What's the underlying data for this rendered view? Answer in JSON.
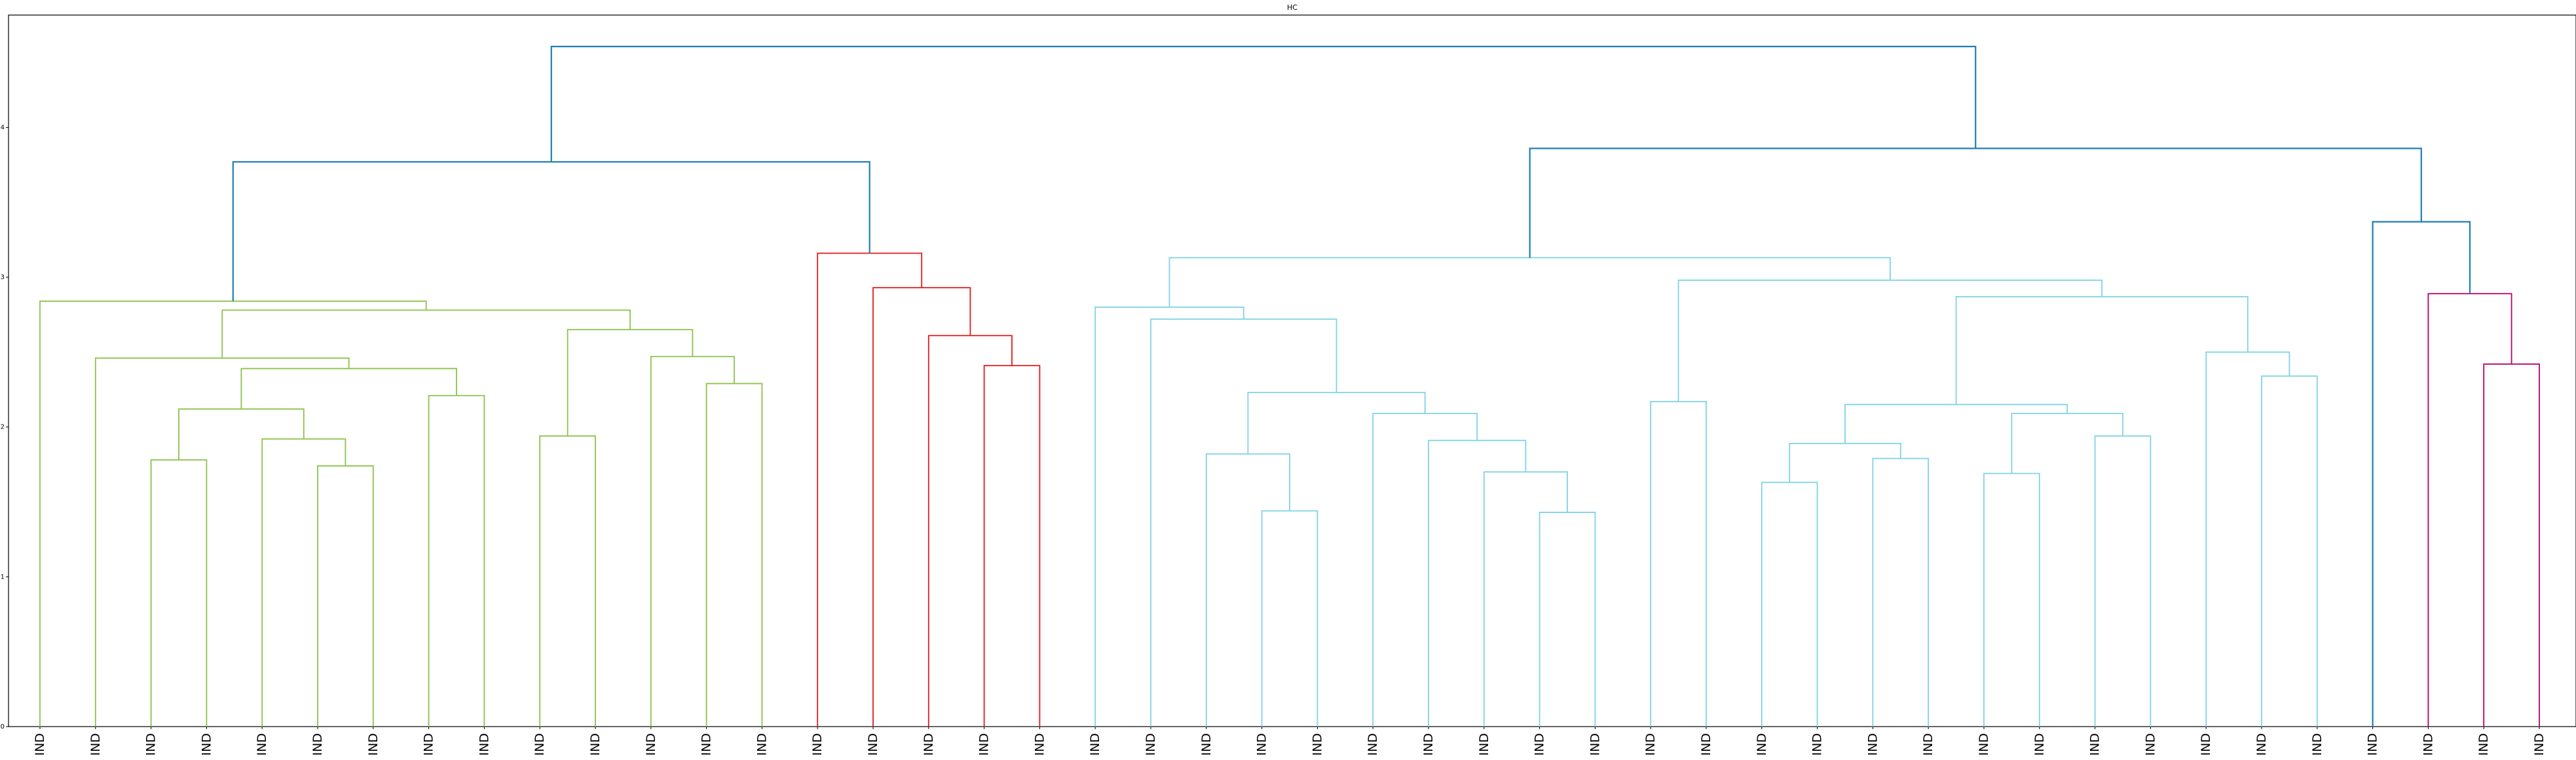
{
  "chart_data": {
    "type": "dendrogram",
    "title": "HC",
    "xlabel": "",
    "ylabel": "",
    "ylim": [
      0,
      4.75
    ],
    "yticks": [
      0,
      1,
      2,
      3,
      4
    ],
    "grid": false,
    "leaf_labels": [
      "IND",
      "IND",
      "IND",
      "IND",
      "IND",
      "IND",
      "IND",
      "IND",
      "IND",
      "IND",
      "IND",
      "IND",
      "IND",
      "IND",
      "IND",
      "IND",
      "IND",
      "IND",
      "IND",
      "IND",
      "IND",
      "IND",
      "IND",
      "IND",
      "IND",
      "IND",
      "IND",
      "IND",
      "IND",
      "IND",
      "IND",
      "IND",
      "IND",
      "IND",
      "IND",
      "IND",
      "IND",
      "IND",
      "IND",
      "IND",
      "IND",
      "IND",
      "IND",
      "IND",
      "IND",
      "IND"
    ],
    "cluster_colors": {
      "green": "#8bc34a",
      "red": "#e41a1c",
      "cyan": "#7fd3e6",
      "magenta": "#b5006b",
      "above_threshold": "#1f7fb4"
    },
    "merges": [
      {
        "left": {
          "leaf": 2
        },
        "right": {
          "leaf": 3
        },
        "height": 1.78,
        "color": "green"
      },
      {
        "left": {
          "leaf": 5
        },
        "right": {
          "leaf": 6
        },
        "height": 1.74,
        "color": "green"
      },
      {
        "left": {
          "leaf": 4
        },
        "right": {
          "node": 1
        },
        "height": 1.92,
        "color": "green"
      },
      {
        "left": {
          "node": 0
        },
        "right": {
          "node": 2
        },
        "height": 2.12,
        "color": "green"
      },
      {
        "left": {
          "leaf": 7
        },
        "right": {
          "leaf": 8
        },
        "height": 2.21,
        "color": "green"
      },
      {
        "left": {
          "node": 3
        },
        "right": {
          "node": 4
        },
        "height": 2.39,
        "color": "green"
      },
      {
        "left": {
          "leaf": 1
        },
        "right": {
          "node": 5
        },
        "height": 2.46,
        "color": "green"
      },
      {
        "left": {
          "leaf": 12
        },
        "right": {
          "leaf": 13
        },
        "height": 2.29,
        "color": "green"
      },
      {
        "left": {
          "leaf": 11
        },
        "right": {
          "node": 7
        },
        "height": 2.47,
        "color": "green"
      },
      {
        "left": {
          "leaf": 9
        },
        "right": {
          "leaf": 10
        },
        "height": 1.94,
        "color": "green"
      },
      {
        "left": {
          "node": 9
        },
        "right": {
          "node": 8
        },
        "height": 2.65,
        "color": "green"
      },
      {
        "left": {
          "node": 6
        },
        "right": {
          "node": 10
        },
        "height": 2.78,
        "color": "green"
      },
      {
        "left": {
          "leaf": 0
        },
        "right": {
          "node": 11
        },
        "height": 2.84,
        "color": "green"
      },
      {
        "left": {
          "leaf": 17
        },
        "right": {
          "leaf": 18
        },
        "height": 2.41,
        "color": "red"
      },
      {
        "left": {
          "leaf": 16
        },
        "right": {
          "node": 13
        },
        "height": 2.61,
        "color": "red"
      },
      {
        "left": {
          "leaf": 15
        },
        "right": {
          "node": 14
        },
        "height": 2.93,
        "color": "red"
      },
      {
        "left": {
          "leaf": 14
        },
        "right": {
          "node": 15
        },
        "height": 3.16,
        "color": "red"
      },
      {
        "left": {
          "node": 12
        },
        "right": {
          "node": 16
        },
        "height": 3.77,
        "color": "above_threshold"
      },
      {
        "left": {
          "leaf": 22
        },
        "right": {
          "leaf": 23
        },
        "height": 1.44,
        "color": "cyan"
      },
      {
        "left": {
          "leaf": 21
        },
        "right": {
          "node": 18
        },
        "height": 1.82,
        "color": "cyan"
      },
      {
        "left": {
          "leaf": 27
        },
        "right": {
          "leaf": 28
        },
        "height": 1.43,
        "color": "cyan"
      },
      {
        "left": {
          "leaf": 26
        },
        "right": {
          "node": 20
        },
        "height": 1.7,
        "color": "cyan"
      },
      {
        "left": {
          "leaf": 25
        },
        "right": {
          "node": 21
        },
        "height": 1.91,
        "color": "cyan"
      },
      {
        "left": {
          "leaf": 24
        },
        "right": {
          "node": 22
        },
        "height": 2.09,
        "color": "cyan"
      },
      {
        "left": {
          "node": 19
        },
        "right": {
          "node": 23
        },
        "height": 2.23,
        "color": "cyan"
      },
      {
        "left": {
          "leaf": 20
        },
        "right": {
          "node": 24
        },
        "height": 2.72,
        "color": "cyan"
      },
      {
        "left": {
          "leaf": 19
        },
        "right": {
          "node": 25
        },
        "height": 2.8,
        "color": "cyan"
      },
      {
        "left": {
          "leaf": 29
        },
        "right": {
          "leaf": 30
        },
        "height": 2.17,
        "color": "cyan"
      },
      {
        "left": {
          "leaf": 31
        },
        "right": {
          "leaf": 32
        },
        "height": 1.63,
        "color": "cyan"
      },
      {
        "left": {
          "leaf": 33
        },
        "right": {
          "leaf": 34
        },
        "height": 1.79,
        "color": "cyan"
      },
      {
        "left": {
          "node": 28
        },
        "right": {
          "node": 29
        },
        "height": 1.89,
        "color": "cyan"
      },
      {
        "left": {
          "leaf": 35
        },
        "right": {
          "leaf": 36
        },
        "height": 1.69,
        "color": "cyan"
      },
      {
        "left": {
          "leaf": 37
        },
        "right": {
          "leaf": 38
        },
        "height": 1.94,
        "color": "cyan"
      },
      {
        "left": {
          "node": 31
        },
        "right": {
          "node": 32
        },
        "height": 2.09,
        "color": "cyan"
      },
      {
        "left": {
          "node": 30
        },
        "right": {
          "node": 33
        },
        "height": 2.15,
        "color": "cyan"
      },
      {
        "left": {
          "leaf": 40
        },
        "right": {
          "leaf": 41
        },
        "height": 2.34,
        "color": "cyan"
      },
      {
        "left": {
          "leaf": 39
        },
        "right": {
          "node": 35
        },
        "height": 2.5,
        "color": "cyan"
      },
      {
        "left": {
          "node": 34
        },
        "right": {
          "node": 36
        },
        "height": 2.87,
        "color": "cyan"
      },
      {
        "left": {
          "node": 27
        },
        "right": {
          "node": 37
        },
        "height": 2.98,
        "color": "cyan"
      },
      {
        "left": {
          "node": 26
        },
        "right": {
          "node": 38
        },
        "height": 3.13,
        "color": "cyan"
      },
      {
        "left": {
          "leaf": 44
        },
        "right": {
          "leaf": 45
        },
        "height": 2.42,
        "color": "magenta"
      },
      {
        "left": {
          "leaf": 43
        },
        "right": {
          "node": 40
        },
        "height": 2.89,
        "color": "magenta"
      },
      {
        "left": {
          "leaf": 42
        },
        "right": {
          "node": 41
        },
        "height": 3.37,
        "color": "above_threshold"
      },
      {
        "left": {
          "node": 39
        },
        "right": {
          "node": 42
        },
        "height": 3.86,
        "color": "above_threshold"
      },
      {
        "left": {
          "node": 17
        },
        "right": {
          "node": 43
        },
        "height": 4.54,
        "color": "above_threshold"
      }
    ]
  }
}
